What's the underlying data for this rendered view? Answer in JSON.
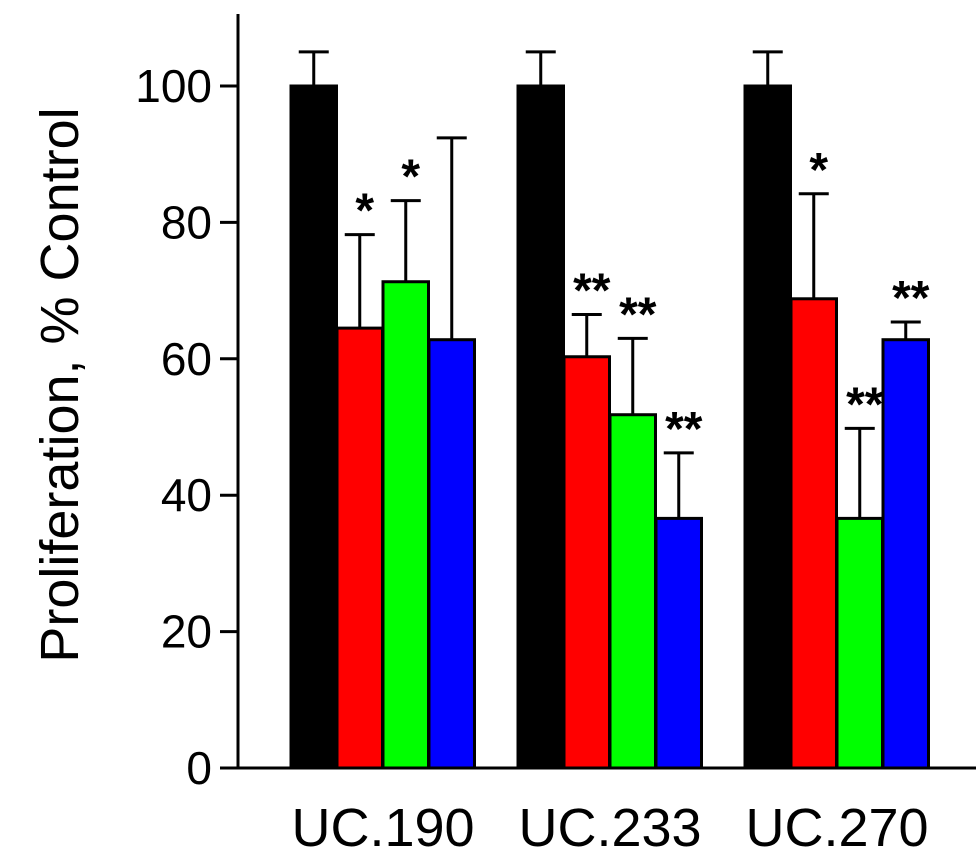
{
  "chart_data": {
    "type": "bar",
    "title": "",
    "xlabel": "",
    "ylabel": "Proliferation, % Control",
    "ylim": [
      0,
      100
    ],
    "yticks": [
      "0",
      "20",
      "40",
      "60",
      "80",
      "100"
    ],
    "grid": false,
    "legend": "none",
    "categories": [
      "UC.190",
      "UC.233",
      "UC.270"
    ],
    "series": [
      {
        "color": "#000000",
        "values": [
          100,
          100,
          100
        ],
        "errors": [
          5,
          5,
          5
        ],
        "significance": [
          "",
          "",
          ""
        ]
      },
      {
        "color": "#ff0000",
        "values": [
          64.5,
          60.3,
          68.8
        ],
        "errors": [
          13.7,
          6.2,
          15.4
        ],
        "significance": [
          "*",
          "**",
          "*"
        ]
      },
      {
        "color": "#00ff00",
        "values": [
          71.3,
          51.8,
          36.6
        ],
        "errors": [
          11.9,
          11.2,
          13.2
        ],
        "significance": [
          "*",
          "**",
          "**"
        ]
      },
      {
        "color": "#0000ff",
        "values": [
          62.8,
          36.6,
          62.8
        ],
        "errors": [
          29.6,
          9.6,
          2.6
        ],
        "significance": [
          "",
          "**",
          "**"
        ]
      }
    ]
  }
}
